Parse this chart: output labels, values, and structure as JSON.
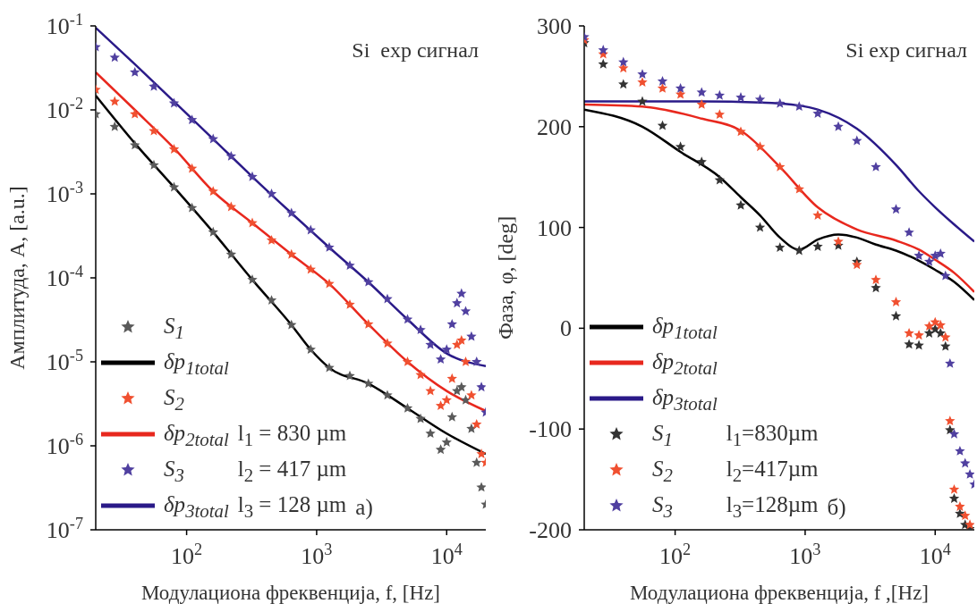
{
  "chart_data": [
    {
      "type": "line",
      "xlabel": "Модулациона фреквенција, f,  [Hz]",
      "ylabel": "Амплитуда, A, [a.u.]",
      "log": "xy",
      "legend": "bottom left",
      "xlim": [
        20,
        20000
      ],
      "xticks": [
        {
          "value": 100,
          "label": "10$^{2}$"
        },
        {
          "value": 1000,
          "label": "10$^{3}$"
        },
        {
          "value": 10000,
          "label": "10$^{4}$"
        }
      ],
      "ylim": [
        1e-07,
        0.1
      ],
      "yticks": [
        {
          "value": 1e-07,
          "label": "10$^{-7}$"
        },
        {
          "value": 1e-06,
          "label": "10$^{-6}$"
        },
        {
          "value": 1e-05,
          "label": "10$^{-5}$"
        },
        {
          "value": 0.0001,
          "label": "10$^{-4}$"
        },
        {
          "value": 0.001,
          "label": "10$^{-3}$"
        },
        {
          "value": 0.01,
          "label": "10$^{-2}$"
        },
        {
          "value": 0.1,
          "label": "10$^{-1}$"
        }
      ],
      "annotations": [
        "Si  exp сигнал",
        "l$_{1}$ = 830 µm",
        "l$_{2}$ = 417 µm",
        "l$_{3}$ = 128 µm",
        "a)"
      ],
      "series": [
        {
          "name": "S$_{1}$",
          "type": "scatter",
          "marker": "star",
          "color": "#5a5a5a",
          "x": [
            20,
            28,
            40,
            56,
            80,
            110,
            160,
            220,
            320,
            450,
            640,
            900,
            1250,
            1800,
            2500,
            3500,
            5000,
            6300,
            7500,
            9000,
            10000,
            11000,
            12000,
            13000,
            14000,
            15500,
            17000,
            18500,
            20000
          ],
          "values": [
            0.0089,
            0.0063,
            0.0038,
            0.0022,
            0.0012,
            0.00068,
            0.00035,
            0.00019,
            9.5e-05,
            5.4e-05,
            2.75e-05,
            1.4e-05,
            8.5e-06,
            6.8e-06,
            5.5e-06,
            4e-06,
            2.8e-06,
            2.1e-06,
            1.4e-06,
            9e-07,
            1.1e-06,
            2.2e-06,
            4.5e-06,
            5e-06,
            3.5e-06,
            1.6e-06,
            6.3e-07,
            3.2e-07,
            2e-07
          ]
        },
        {
          "name": "δp$_{1total}$",
          "type": "line",
          "color": "#000000",
          "x": [
            20,
            40,
            80,
            160,
            320,
            640,
            900,
            1250,
            2500,
            5000,
            10000,
            20000
          ],
          "values": [
            0.0148,
            0.004,
            0.0012,
            0.00035,
            9.5e-05,
            2.75e-05,
            1.4e-05,
            8.5e-06,
            5.5e-06,
            2.8e-06,
            1.4e-06,
            8e-07
          ]
        },
        {
          "name": "S$_{2}$",
          "type": "scatter",
          "marker": "star",
          "color": "#f05030",
          "x": [
            20,
            28,
            40,
            56,
            80,
            110,
            160,
            220,
            320,
            450,
            640,
            900,
            1250,
            1800,
            2500,
            3500,
            5000,
            6300,
            7500,
            9000,
            10000,
            11000,
            12000,
            13000,
            14000,
            15500,
            17000,
            18500,
            20000
          ],
          "values": [
            0.0174,
            0.0126,
            0.0089,
            0.0056,
            0.0034,
            0.002,
            0.00107,
            0.0007,
            0.00045,
            0.00028,
            0.00019,
            0.000126,
            8.5e-05,
            4.8e-05,
            2.8e-05,
            1.66e-05,
            1e-05,
            7e-06,
            4.5e-06,
            3e-06,
            3.5e-06,
            6.3e-06,
            1.6e-05,
            1.8e-05,
            1e-05,
            4e-06,
            1.8e-06,
            8e-07,
            6.3e-07
          ]
        },
        {
          "name": "δp$_{2total}$",
          "type": "line",
          "color": "#e8281e",
          "x": [
            20,
            40,
            80,
            160,
            320,
            640,
            1250,
            2500,
            5000,
            10000,
            20000
          ],
          "values": [
            0.028,
            0.01,
            0.0035,
            0.00107,
            0.00045,
            0.00019,
            8.5e-05,
            2.8e-05,
            1e-05,
            4.5e-06,
            2.6e-06
          ]
        },
        {
          "name": "S$_{3}$",
          "type": "scatter",
          "marker": "star",
          "color": "#5040a0",
          "x": [
            20,
            28,
            40,
            56,
            80,
            110,
            160,
            220,
            320,
            450,
            640,
            900,
            1250,
            1800,
            2500,
            3500,
            5000,
            6300,
            7500,
            9000,
            10000,
            11000,
            12000,
            13000,
            14000,
            15500,
            17000,
            18500,
            20000
          ],
          "values": [
            0.056,
            0.042,
            0.028,
            0.019,
            0.012,
            0.0076,
            0.0045,
            0.0028,
            0.0016,
            0.001,
            0.00059,
            0.00037,
            0.00023,
            0.00014,
            8.9e-05,
            5.6e-05,
            3.2e-05,
            2.4e-05,
            1.6e-05,
            1.07e-05,
            1.4e-05,
            2.8e-05,
            5e-05,
            6.5e-05,
            4e-05,
            2e-05,
            1e-05,
            5e-06,
            2.5e-06
          ]
        },
        {
          "name": "δp$_{3total}$",
          "type": "line",
          "color": "#2a1a88",
          "x": [
            20,
            40,
            80,
            160,
            320,
            640,
            1250,
            2500,
            5000,
            10000,
            20000
          ],
          "values": [
            0.095,
            0.035,
            0.0126,
            0.0045,
            0.0016,
            0.00059,
            0.00023,
            8.9e-05,
            3.2e-05,
            1.26e-05,
            8.9e-06
          ]
        }
      ]
    },
    {
      "type": "line",
      "xlabel": "Модулациона фреквенција, f ,[Hz]",
      "ylabel": "Фаза, φ, [deg]",
      "log": "x",
      "legend": "bottom left",
      "xlim": [
        20,
        20000
      ],
      "xticks": [
        {
          "value": 100,
          "label": "10$^{2}$"
        },
        {
          "value": 1000,
          "label": "10$^{3}$"
        },
        {
          "value": 10000,
          "label": "10$^{4}$"
        }
      ],
      "ylim": [
        -200,
        300
      ],
      "yticks": [
        {
          "value": -200,
          "label": "-200"
        },
        {
          "value": -100,
          "label": "-100"
        },
        0,
        100,
        200,
        300
      ],
      "annotations": [
        "Si exp сигнал",
        "l$_{1}$=830µm",
        "l$_{2}$=417µm",
        "l$_{3}$=128µm",
        "б)"
      ],
      "series": [
        {
          "name": "δp$_{1total}$",
          "type": "line",
          "color": "#000000",
          "x": [
            20,
            56,
            110,
            220,
            320,
            450,
            640,
            900,
            1250,
            1800,
            2500,
            3500,
            5000,
            7500,
            10000,
            14000,
            20000
          ],
          "values": [
            217,
            200,
            175,
            150,
            130,
            112,
            90,
            78,
            88,
            93,
            90,
            83,
            77,
            67,
            58,
            46,
            28
          ]
        },
        {
          "name": "δp$_{2total}$",
          "type": "line",
          "color": "#e8281e",
          "x": [
            20,
            56,
            160,
            320,
            640,
            1250,
            2500,
            5000,
            7500,
            10000,
            14000,
            20000
          ],
          "values": [
            222,
            220,
            208,
            196,
            160,
            120,
            98,
            87,
            78,
            68,
            55,
            36
          ]
        },
        {
          "name": "δp$_{3total}$",
          "type": "line",
          "color": "#2a1a88",
          "x": [
            20,
            160,
            450,
            900,
            1250,
            2500,
            5000,
            7500,
            10000,
            14000,
            20000
          ],
          "values": [
            225,
            225,
            224,
            221,
            217,
            198,
            162,
            136,
            120,
            103,
            86
          ]
        },
        {
          "name": "S$_{1}$",
          "type": "scatter",
          "marker": "star",
          "color": "#333333",
          "x": [
            20,
            28,
            40,
            56,
            80,
            110,
            160,
            220,
            320,
            450,
            640,
            900,
            1250,
            1800,
            2500,
            3500,
            5000,
            6300,
            7500,
            9000,
            10000,
            11000,
            12000,
            13000,
            14000,
            15500,
            17000,
            18500
          ],
          "values": [
            283,
            262,
            242,
            225,
            201,
            180,
            165,
            147,
            122,
            100,
            80,
            77,
            81,
            82,
            66,
            40,
            12,
            -16,
            -17,
            -5,
            -1,
            -5,
            -18,
            -101,
            -169,
            -184,
            -195,
            -199
          ]
        },
        {
          "name": "S$_{2}$",
          "type": "scatter",
          "marker": "star",
          "color": "#f05030",
          "x": [
            20,
            28,
            40,
            56,
            80,
            110,
            160,
            220,
            320,
            450,
            640,
            900,
            1250,
            1800,
            2500,
            3500,
            5000,
            6300,
            7500,
            9000,
            10000,
            11000,
            12000,
            13000,
            14000,
            15500,
            17000,
            18500
          ],
          "values": [
            286,
            272,
            258,
            244,
            238,
            232,
            222,
            212,
            195,
            180,
            160,
            138,
            112,
            86,
            63,
            48,
            26,
            -5,
            -7,
            2,
            6,
            3,
            -9,
            -92,
            -160,
            -177,
            -186,
            -195
          ]
        },
        {
          "name": "S$_{3}$",
          "type": "scatter",
          "marker": "star",
          "color": "#5040a0",
          "x": [
            20,
            28,
            40,
            56,
            80,
            110,
            160,
            220,
            320,
            450,
            640,
            900,
            1250,
            1800,
            2500,
            3500,
            5000,
            6300,
            7500,
            9000,
            10000,
            11000,
            12000,
            13000,
            14000,
            15500,
            17000,
            18500,
            20000
          ],
          "values": [
            289,
            276,
            264,
            252,
            245,
            238,
            234,
            231,
            229,
            227,
            223,
            220,
            213,
            200,
            186,
            160,
            118,
            95,
            72,
            66,
            72,
            74,
            52,
            -35,
            -105,
            -122,
            -134,
            -145,
            -155
          ]
        }
      ]
    }
  ]
}
